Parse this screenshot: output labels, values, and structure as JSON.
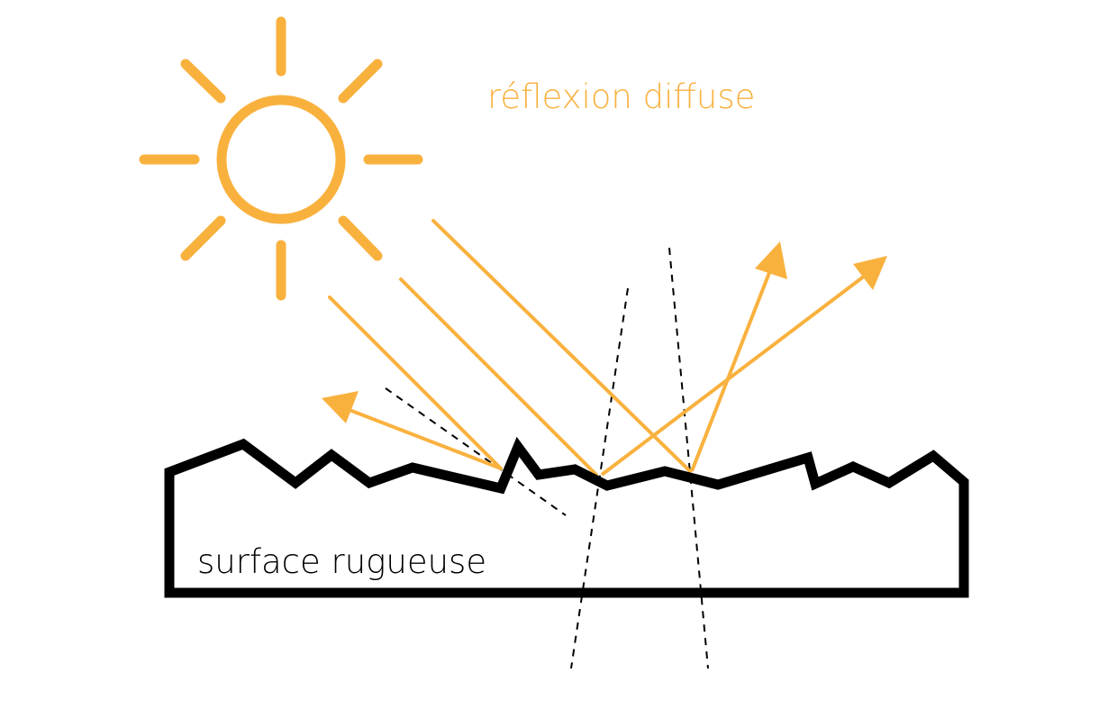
{
  "title": "réflexion diffuse",
  "surface_label": "surface rugueuse",
  "colors": {
    "light": "#F9B13E",
    "surface": "#000000",
    "background": "#FFFFFF"
  },
  "icons": [
    "sun-icon"
  ]
}
